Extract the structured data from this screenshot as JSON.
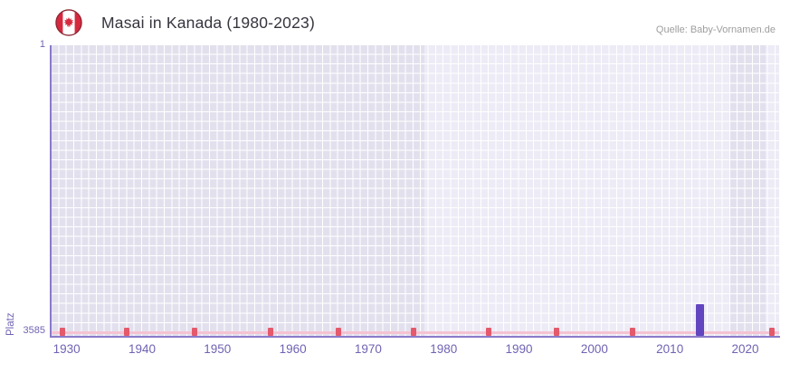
{
  "header": {
    "flag_icon": "canada-flag",
    "title": "Masai in Kanada (1980-2023)",
    "source": "Quelle: Baby-Vornamen.de"
  },
  "colors": {
    "title_text": "#35353f",
    "source_text": "#9e9e9e",
    "axis": "#8a7ac8",
    "tick_labels": "#7163b3",
    "plot_background": "#edebf6",
    "plot_band": "#e3e0ee",
    "grid": "#ffffff",
    "bar": "#6246c0",
    "unranked_marker": "#e4596b",
    "unranked_baseline": "#f5c3d2",
    "flag_red": "#d6293e",
    "flag_ring": "#8d2533"
  },
  "chart_data": {
    "type": "bar",
    "title": "Masai in Kanada (1980-2023)",
    "xlabel": "",
    "ylabel": "Platz",
    "y_axis": {
      "inverted": true,
      "min": 1,
      "max": 3585,
      "tick_labels": [
        "1",
        "3585"
      ],
      "grid_step_rank": 120
    },
    "x_axis": {
      "min": 1928,
      "max": 2024.5,
      "grid_step_years": 1,
      "tick_years": [
        1930,
        1940,
        1950,
        1960,
        1970,
        1980,
        1990,
        2000,
        2010,
        2020
      ]
    },
    "legend": "none",
    "bars": [
      {
        "year": 2014,
        "rank": 3250
      }
    ],
    "unranked_baseline_rank": 3585,
    "unranked_marker_years": [
      1929.5,
      1938,
      1947,
      1957,
      1966,
      1976,
      1986,
      1995,
      2005,
      2023.5
    ],
    "plot_bands": [
      {
        "from_year": 1928,
        "to_year": 1977.5
      },
      {
        "from_year": 2018,
        "to_year": 2022.7
      }
    ]
  }
}
